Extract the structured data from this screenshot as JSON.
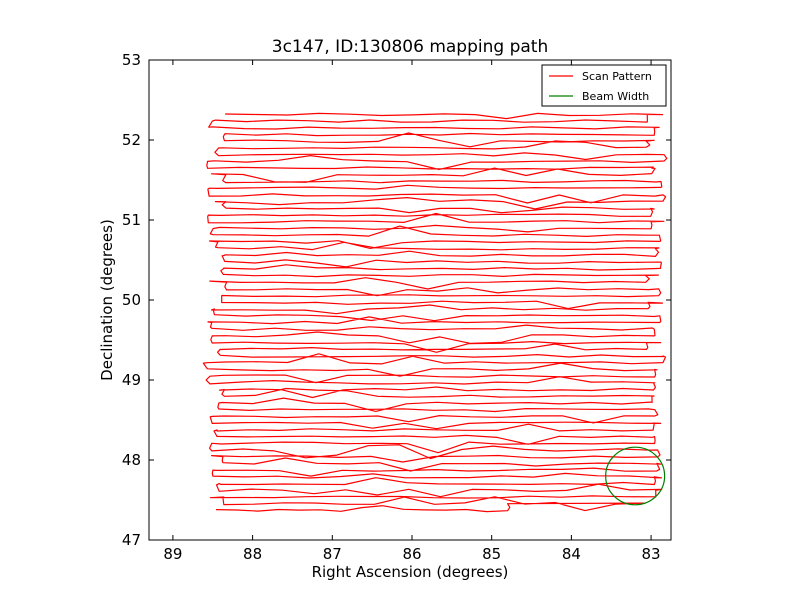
{
  "chart_data": {
    "type": "line",
    "title": "3c147, ID:130806 mapping path",
    "xlabel": "Right Ascension (degrees)",
    "ylabel": "Declination (degrees)",
    "xlim": [
      89.3,
      82.75
    ],
    "ylim": [
      47,
      53
    ],
    "x_inverted": true,
    "xticks": [
      89,
      88,
      87,
      86,
      85,
      84,
      83
    ],
    "yticks": [
      47,
      48,
      49,
      50,
      51,
      52,
      53
    ],
    "grid": false,
    "legend": {
      "position": "top-right",
      "entries": [
        "Scan Pattern",
        "Beam Width"
      ]
    },
    "series": [
      {
        "name": "Scan Pattern",
        "color": "#ff0000",
        "kind": "raster",
        "dec_start": 47.37,
        "dec_end": 52.32,
        "rows": 60,
        "ra_range": [
          88.45,
          82.95
        ],
        "last_row_end_ra": 84.8
      },
      {
        "name": "Beam Width",
        "color": "#008000",
        "kind": "circle",
        "center": [
          83.2,
          47.8
        ],
        "radius_ra": 0.37,
        "radius_dec": 0.36
      }
    ]
  }
}
